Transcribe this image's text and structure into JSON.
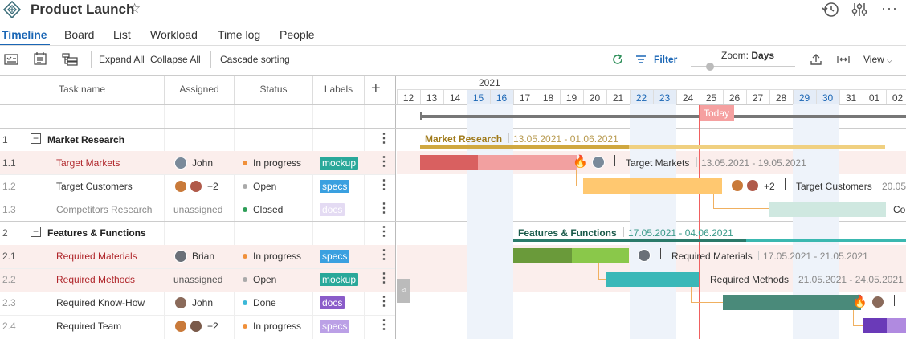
{
  "header": {
    "title": "Product Launch",
    "tabs": [
      {
        "label": "Timeline",
        "active": true
      },
      {
        "label": "Board"
      },
      {
        "label": "List"
      },
      {
        "label": "Workload"
      },
      {
        "label": "Time log"
      },
      {
        "label": "People"
      }
    ],
    "icons": [
      "project-logo-icon",
      "star-icon",
      "history-icon",
      "sliders-icon",
      "more-icon"
    ]
  },
  "toolbar": {
    "expand_all": "Expand All",
    "collapse_all": "Collapse All",
    "cascade_sorting": "Cascade sorting",
    "filter": "Filter",
    "zoom_label": "Zoom:",
    "zoom_value": "Days",
    "view": "View"
  },
  "columns": {
    "task_name": "Task name",
    "assigned": "Assigned",
    "status": "Status",
    "labels": "Labels"
  },
  "rows": [
    {
      "num": "1",
      "name": "Market Research",
      "type": "group"
    },
    {
      "num": "1.1",
      "name": "Target Markets",
      "assignee": "John",
      "status": "In progress",
      "label": "mockup"
    },
    {
      "num": "1.2",
      "name": "Target Customers",
      "assignee_extra": "+2",
      "status": "Open",
      "label": "specs"
    },
    {
      "num": "1.3",
      "name": "Competitors Research",
      "assignee": "unassigned",
      "status": "Closed",
      "label": "docs"
    },
    {
      "num": "2",
      "name": "Features & Functions",
      "type": "group"
    },
    {
      "num": "2.1",
      "name": "Required Materials",
      "assignee": "Brian",
      "status": "In progress",
      "label": "specs"
    },
    {
      "num": "2.2",
      "name": "Required Methods",
      "assignee": "unassigned",
      "status": "Open",
      "label": "mockup"
    },
    {
      "num": "2.3",
      "name": "Required Know-How",
      "assignee": "John",
      "status": "Done",
      "label": "docs"
    },
    {
      "num": "2.4",
      "name": "Required Team",
      "assignee_extra": "+2",
      "status": "In progress",
      "label": "specs"
    }
  ],
  "colors": {
    "accent": "#1a66b5",
    "label_mockup": "#2aa89a",
    "label_specs": "#3aa0e0",
    "label_docs": "#8a5cc9",
    "status_in_progress": "#f0903a",
    "status_open": "#aaaaaa",
    "status_closed": "#2e9e58",
    "status_done": "#3cb8d8",
    "today": "#f08080"
  },
  "gantt": {
    "year": "2021",
    "days": [
      "12",
      "13",
      "14",
      "15",
      "16",
      "17",
      "18",
      "19",
      "20",
      "21",
      "22",
      "23",
      "24",
      "25",
      "26",
      "27",
      "28",
      "29",
      "30",
      "31",
      "01",
      "02"
    ],
    "today_label": "Today",
    "groups": [
      {
        "name": "Market Research",
        "dates": "13.05.2021 - 01.06.2021"
      },
      {
        "name": "Features & Functions",
        "dates": "17.05.2021 - 04.06.2021"
      }
    ],
    "tasks": [
      {
        "name": "Target Markets",
        "dates": "13.05.2021 - 19.05.2021"
      },
      {
        "name": "Target Customers",
        "extra": "+2",
        "dates": "20.05"
      },
      {
        "name": "Co"
      },
      {
        "name": "Required Materials",
        "dates": "17.05.2021 - 21.05.2021"
      },
      {
        "name": "Required Methods",
        "dates": "21.05.2021 - 24.05.2021"
      }
    ]
  }
}
